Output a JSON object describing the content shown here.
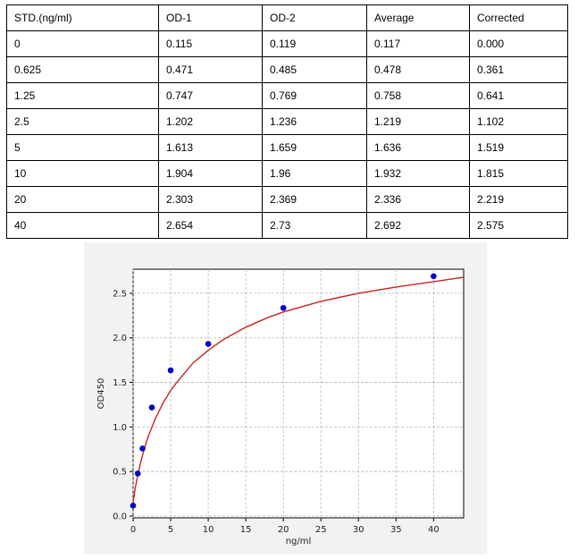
{
  "table": {
    "headers": [
      "STD.(ng/ml)",
      "OD-1",
      "OD-2",
      "Average",
      "Corrected"
    ],
    "rows": [
      [
        "0",
        "0.115",
        "0.119",
        "0.117",
        "0.000"
      ],
      [
        "0.625",
        "0.471",
        "0.485",
        "0.478",
        "0.361"
      ],
      [
        "1.25",
        "0.747",
        "0.769",
        "0.758",
        "0.641"
      ],
      [
        "2.5",
        "1.202",
        "1.236",
        "1.219",
        "1.102"
      ],
      [
        "5",
        "1.613",
        "1.659",
        "1.636",
        "1.519"
      ],
      [
        "10",
        "1.904",
        "1.96",
        "1.932",
        "1.815"
      ],
      [
        "20",
        "2.303",
        "2.369",
        "2.336",
        "2.219"
      ],
      [
        "40",
        "2.654",
        "2.73",
        "2.692",
        "2.575"
      ]
    ]
  },
  "chart_data": {
    "type": "scatter",
    "title": "",
    "xlabel": "ng/ml",
    "ylabel": "OD450",
    "xlim": [
      0,
      44
    ],
    "ylim": [
      -0.02,
      2.77
    ],
    "xticks": [
      0,
      5,
      10,
      15,
      20,
      25,
      30,
      35,
      40
    ],
    "yticks": [
      0.0,
      0.5,
      1.0,
      1.5,
      2.0,
      2.5
    ],
    "ytick_labels": [
      "0.0",
      "0.5",
      "1.0",
      "1.5",
      "2.0",
      "2.5"
    ],
    "grid": true,
    "points": {
      "x": [
        0,
        0.625,
        1.25,
        2.5,
        5,
        10,
        20,
        40
      ],
      "y": [
        0.117,
        0.478,
        0.758,
        1.219,
        1.636,
        1.932,
        2.336,
        2.692
      ],
      "color": "#0000cc"
    },
    "fit_curve": {
      "color": "#cc2222",
      "x": [
        0,
        0.1,
        0.3,
        0.6,
        1,
        1.5,
        2,
        3,
        4,
        5,
        6,
        8,
        10,
        12,
        15,
        18,
        20,
        25,
        30,
        35,
        40,
        44
      ],
      "y": [
        0.15,
        0.21,
        0.32,
        0.45,
        0.6,
        0.76,
        0.89,
        1.1,
        1.27,
        1.41,
        1.52,
        1.72,
        1.86,
        1.98,
        2.12,
        2.23,
        2.29,
        2.41,
        2.5,
        2.57,
        2.63,
        2.68
      ]
    }
  }
}
